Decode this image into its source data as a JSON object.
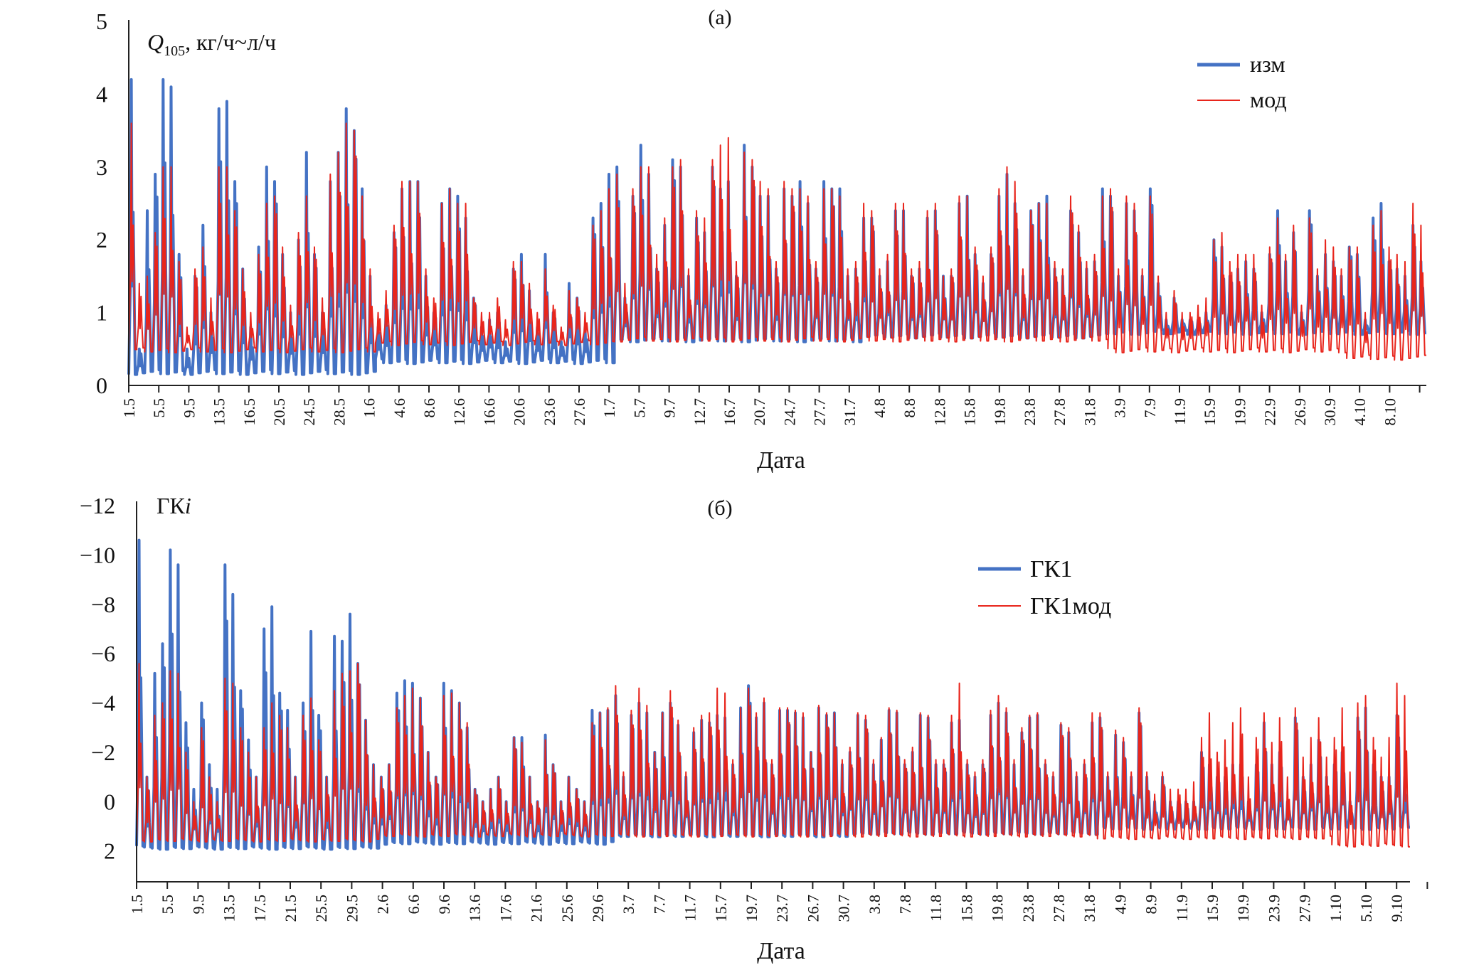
{
  "chart_data": [
    {
      "type": "line",
      "title": "(а)",
      "ylabel": "Q105, кг/ч~л/ч",
      "ylabel_main": "Q",
      "ylabel_sub": "105",
      "ylabel_rest": ", кг/ч~л/ч",
      "xlabel": "Дата",
      "ylim": [
        0,
        5
      ],
      "yticks": [
        "0",
        "1",
        "2",
        "3",
        "4",
        "5"
      ],
      "xtick_labels": [
        "1.5",
        "5.5",
        "9.5",
        "13.5",
        "16.5",
        "20.5",
        "24.5",
        "28.5",
        "1.6",
        "4.6",
        "8.6",
        "12.6",
        "16.6",
        "20.6",
        "23.6",
        "27.6",
        "1.7",
        "5.7",
        "9.7",
        "12.7",
        "16.7",
        "20.7",
        "24.7",
        "27.7",
        "31.7",
        "4.8",
        "8.8",
        "12.8",
        "15.8",
        "19.8",
        "23.8",
        "27.8",
        "31.8",
        "3.9",
        "7.9",
        "11.9",
        "15.9",
        "19.9",
        "22.9",
        "26.9",
        "30.9",
        "4.10",
        "8.10"
      ],
      "legend_position": "top-right",
      "x_days_from": "1.5",
      "series": [
        {
          "name": "изм",
          "color": "#4472C4",
          "monthly_min": [
            0.15,
            0.3,
            0.6,
            0.65,
            0.7,
            0.7
          ],
          "daily_peak": [
            4.2,
            0.5,
            2.4,
            2.9,
            4.2,
            4.1,
            1.8,
            0.5,
            1.5,
            2.2,
            1.0,
            3.8,
            3.9,
            2.8,
            1.6,
            0.8,
            1.9,
            3.0,
            2.8,
            1.8,
            1.0,
            2.0,
            3.2,
            1.8,
            1.0,
            2.8,
            3.2,
            3.8,
            3.5,
            2.7,
            1.5,
            0.8,
            1.1,
            2.1,
            2.7,
            2.8,
            2.8,
            1.5,
            1.0,
            2.5,
            2.7,
            2.6,
            2.3,
            1.2,
            0.8,
            0.9,
            1.0,
            0.6,
            1.6,
            1.8,
            1.3,
            0.8,
            1.8,
            1.0,
            0.6,
            1.4,
            1.2,
            0.8,
            2.3,
            2.5,
            2.9,
            3.0,
            1.2,
            2.6,
            3.3,
            2.9,
            1.6,
            2.2,
            3.1,
            3.0,
            1.5,
            2.3,
            2.1,
            3.0,
            2.7,
            2.8,
            1.5,
            3.3,
            3.0,
            2.6,
            2.6,
            1.6,
            2.7,
            2.6,
            2.8,
            2.5,
            1.6,
            2.8,
            2.7,
            2.7,
            1.5,
            1.6,
            2.3,
            2.3,
            1.5,
            1.7,
            2.4,
            2.4,
            1.5,
            1.6,
            2.3,
            2.4,
            1.5,
            1.5,
            2.5,
            2.6,
            1.8,
            1.4,
            1.8,
            2.6,
            2.9,
            2.5,
            1.5,
            2.4,
            2.5,
            2.6,
            1.6,
            1.5,
            2.4,
            2.1,
            1.6,
            1.7,
            2.7,
            2.6,
            1.5,
            2.5,
            2.4,
            1.5,
            2.7,
            1.4,
            0.9,
            1.2,
            0.9,
            0.9,
            0.9,
            1.0,
            2.0,
            1.9,
            1.5,
            1.6,
            1.7,
            1.6,
            1.0,
            1.8,
            2.4,
            1.7,
            2.1,
            1.0,
            2.4,
            1.5,
            1.8,
            1.7,
            1.5,
            1.9,
            1.8,
            0.9,
            2.3,
            2.5,
            1.7,
            1.6,
            1.5,
            2.2,
            1.7
          ]
        },
        {
          "name": "мод",
          "color": "#E8251C",
          "monthly_min": [
            0.45,
            0.55,
            0.6,
            0.6,
            0.45,
            0.35
          ],
          "daily_peak": [
            3.6,
            1.4,
            1.5,
            2.1,
            3.0,
            3.0,
            1.7,
            0.8,
            1.6,
            1.9,
            1.2,
            3.0,
            3.0,
            2.4,
            1.6,
            1.0,
            1.8,
            2.5,
            2.6,
            1.9,
            1.1,
            2.1,
            2.6,
            1.9,
            1.2,
            2.9,
            3.2,
            3.6,
            3.5,
            2.6,
            1.6,
            1.0,
            1.3,
            2.2,
            2.8,
            2.8,
            2.8,
            1.6,
            1.2,
            2.5,
            2.7,
            2.5,
            2.5,
            1.2,
            1.0,
            1.0,
            1.2,
            0.9,
            1.7,
            1.7,
            1.4,
            1.0,
            1.6,
            1.1,
            0.8,
            1.3,
            1.2,
            1.0,
            2.2,
            2.4,
            2.7,
            2.9,
            1.4,
            2.7,
            3.0,
            3.0,
            1.8,
            2.3,
            3.0,
            3.1,
            1.6,
            2.4,
            2.3,
            3.1,
            3.3,
            3.4,
            1.7,
            3.2,
            3.1,
            2.8,
            2.7,
            1.7,
            2.8,
            2.7,
            2.7,
            2.6,
            1.7,
            2.7,
            2.7,
            2.6,
            1.6,
            1.7,
            2.5,
            2.4,
            1.6,
            1.8,
            2.5,
            2.5,
            1.6,
            1.7,
            2.4,
            2.5,
            1.5,
            1.6,
            2.6,
            2.6,
            1.9,
            1.5,
            1.9,
            2.7,
            3.0,
            2.8,
            1.6,
            2.4,
            2.5,
            2.5,
            1.7,
            1.6,
            2.6,
            2.2,
            1.7,
            1.8,
            2.6,
            2.7,
            1.6,
            2.6,
            2.5,
            1.6,
            2.6,
            1.5,
            1.0,
            1.3,
            1.0,
            1.0,
            1.1,
            1.2,
            2.0,
            2.1,
            1.7,
            1.8,
            1.8,
            1.8,
            1.1,
            1.9,
            2.3,
            1.8,
            2.2,
            1.1,
            2.3,
            1.6,
            2.0,
            1.9,
            1.6,
            1.9,
            1.9,
            1.0,
            2.2,
            2.4,
            1.9,
            1.8,
            1.7,
            2.5,
            2.2
          ]
        }
      ]
    },
    {
      "type": "line",
      "title": "(б)",
      "ylabel": "ГКi",
      "ylabel_main": "ГК",
      "ylabel_italic": "i",
      "xlabel": "Дата",
      "ylim": [
        -12,
        3.25
      ],
      "y_inverted": true,
      "yticks": [
        "−12",
        "−10",
        "−8",
        "−6",
        "−4",
        "−2",
        "0",
        "2"
      ],
      "ytick_values": [
        -12,
        -10,
        -8,
        -6,
        -4,
        -2,
        0,
        2
      ],
      "xtick_labels": [
        "1.5",
        "5.5",
        "9.5",
        "13.5",
        "17.5",
        "21.5",
        "25.5",
        "29.5",
        "2.6",
        "6.6",
        "9.6",
        "13.6",
        "17.6",
        "21.6",
        "25.6",
        "29.6",
        "3.7",
        "7.7",
        "11.7",
        "15.7",
        "19.7",
        "23.7",
        "26.7",
        "30.7",
        "3.8",
        "7.8",
        "11.8",
        "15.8",
        "19.8",
        "23.8",
        "27.8",
        "31.8",
        "4.9",
        "8.9",
        "11.9",
        "15.9",
        "19.9",
        "23.9",
        "27.9",
        "1.10",
        "5.10",
        "9.10"
      ],
      "legend_position": "top-right",
      "series": [
        {
          "name": "ГК1",
          "color": "#4472C4",
          "monthly_min": [
            1.8,
            1.6,
            1.3,
            1.2,
            1.0,
            1.0
          ],
          "daily_peak": [
            -10.6,
            -1,
            -5.2,
            -6.4,
            -10.2,
            -9.6,
            -3.2,
            -0.5,
            -4,
            -1.5,
            -0.5,
            -9.6,
            -8.4,
            -4.5,
            -2.5,
            -1,
            -7,
            -7.9,
            -4.4,
            -3.7,
            -1,
            -4,
            -6.9,
            -3.5,
            -1,
            -6.7,
            -6.5,
            -7.6,
            -5.6,
            -3.3,
            -1.5,
            -1,
            -1.5,
            -4.4,
            -4.9,
            -4.8,
            -4.2,
            -2,
            -1,
            -4.8,
            -4.5,
            -4,
            -3,
            -0.5,
            0,
            -0.5,
            -1,
            0,
            -2.6,
            -2.6,
            -1,
            0,
            -2.7,
            -1.5,
            0,
            -1,
            -0.5,
            0,
            -3.7,
            -3.6,
            -3.7,
            -4.3,
            -1,
            -3.5,
            -4,
            -3.6,
            -2,
            -3.6,
            -4,
            -3.1,
            -1,
            -2.8,
            -3.3,
            -3.2,
            -3.5,
            -3.4,
            -1.5,
            -3.8,
            -4.7,
            -3.4,
            -4.0,
            -1.5,
            -3.7,
            -3.7,
            -3.6,
            -3.4,
            -2,
            -3.8,
            -3.5,
            -3.6,
            -1.5,
            -2,
            -3.5,
            -3.3,
            -1.5,
            -2.5,
            -3.7,
            -3.6,
            -1.5,
            -2,
            -3.5,
            -3.4,
            -1.5,
            -1.5,
            -3.2,
            -3.3,
            -1.5,
            -1,
            -1.5,
            -3.5,
            -4,
            -3.6,
            -1.5,
            -2.8,
            -3.4,
            -3.5,
            -1.5,
            -1,
            -3.1,
            -2.8,
            -1,
            -1.5,
            -3.2,
            -3.4,
            -1,
            -2.7,
            -2.4,
            -1,
            -3.6,
            -1,
            0,
            -1,
            0,
            0,
            0,
            0,
            -2,
            -1.5,
            -1,
            -1,
            -1.5,
            -1.5,
            0,
            -1.5,
            -3.2,
            -1.5,
            -2,
            0,
            -3.4,
            -1,
            -1.5,
            -2.5,
            -1,
            -1.5,
            -2,
            0,
            -3.4,
            -3.8,
            -1.5,
            -1,
            -1,
            -3.5,
            -1
          ]
        },
        {
          "name": "ГК1мод",
          "color": "#E8251C",
          "monthly_min": [
            1.5,
            1.3,
            1.3,
            1.3,
            1.4,
            1.7
          ],
          "daily_peak": [
            -5.6,
            -1,
            -3.5,
            -4,
            -5.3,
            -5.2,
            -2,
            0,
            -3,
            -1,
            0,
            -5,
            -4.8,
            -3,
            -2,
            -1,
            -3,
            -4,
            -3.5,
            -3,
            -1,
            -3.5,
            -4.2,
            -2.5,
            -1,
            -4.5,
            -5.2,
            -5.3,
            -5.6,
            -3.3,
            -1.5,
            -1,
            -1.5,
            -3.8,
            -4.3,
            -4.6,
            -4.2,
            -2,
            -1,
            -4.3,
            -4.4,
            -4.0,
            -3.2,
            -0.5,
            0,
            -0.5,
            -1,
            0,
            -2.6,
            -2.4,
            -1,
            0,
            -2.5,
            -1.5,
            0,
            -1,
            -0.5,
            0,
            -3.2,
            -3.6,
            -3.8,
            -4.7,
            -1.2,
            -3.7,
            -4.6,
            -3.9,
            -2,
            -3.6,
            -4.5,
            -3.3,
            -1.2,
            -3.0,
            -3.5,
            -3.6,
            -4.6,
            -4.4,
            -1.7,
            -3.8,
            -4.6,
            -3.6,
            -4.2,
            -1.7,
            -3.8,
            -3.8,
            -3.7,
            -3.6,
            -2,
            -3.9,
            -3.6,
            -3.6,
            -1.7,
            -2.2,
            -3.6,
            -3.5,
            -1.7,
            -2.6,
            -3.8,
            -3.7,
            -1.7,
            -2.2,
            -3.6,
            -3.5,
            -1.7,
            -1.7,
            -3.5,
            -4.8,
            -1.7,
            -1.2,
            -1.7,
            -3.7,
            -4.3,
            -3.8,
            -1.7,
            -3.0,
            -3.5,
            -3.6,
            -1.7,
            -1.2,
            -3.2,
            -3.0,
            -1.2,
            -1.7,
            -3.6,
            -3.6,
            -1.2,
            -2.9,
            -2.6,
            -1.2,
            -3.8,
            -1.2,
            -0.3,
            -1.2,
            -0.5,
            -0.5,
            -0.5,
            -0.8,
            -2.6,
            -3.6,
            -2,
            -2.5,
            -3.2,
            -3.8,
            -1,
            -2.6,
            -3.6,
            -2.4,
            -3.4,
            -1,
            -3.8,
            -1.8,
            -2.6,
            -3.4,
            -1.8,
            -2.6,
            -3.8,
            -1.2,
            -4.0,
            -4.3,
            -2.6,
            -1.8,
            -2.6,
            -4.8,
            -4.3
          ]
        }
      ]
    }
  ]
}
